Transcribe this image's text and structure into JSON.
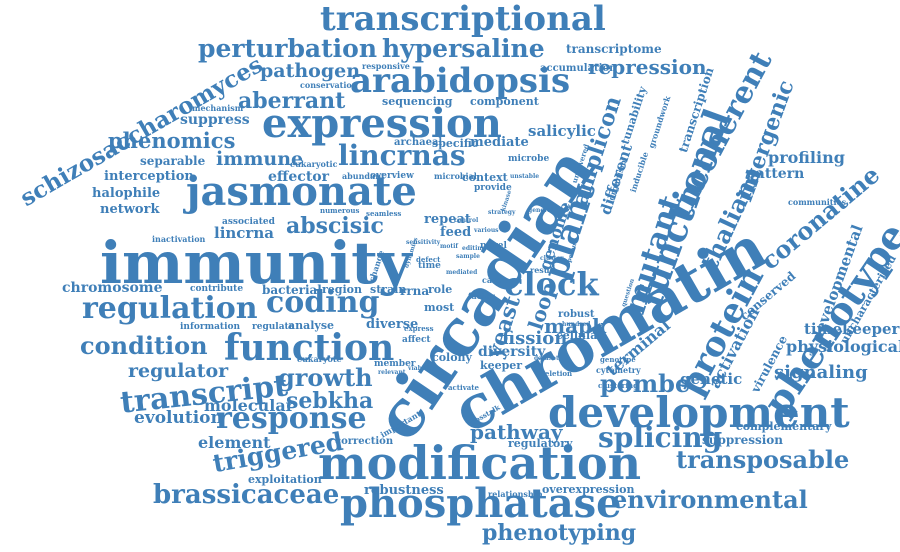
{
  "colors": {
    "word": "#3f7fb8",
    "background": "#ffffff"
  },
  "words": [
    "transcriptional",
    "perturbation",
    "hypersaline",
    "transcriptome",
    "repression",
    "pathogen",
    "responsive",
    "accumulation",
    "arabidopsis",
    "conservation",
    "aberrant",
    "sequencing",
    "component",
    "expression",
    "mechanism",
    "suppress",
    "salicylic",
    "phenomics",
    "lincrnas",
    "immune",
    "separable",
    "interception",
    "effector",
    "halophile",
    "network",
    "jasmonate",
    "associated",
    "inactivation",
    "lincrna",
    "abscisic",
    "immunity",
    "chromosome",
    "regulation",
    "coding",
    "condition",
    "function",
    "regulator",
    "transcript",
    "growth",
    "evolution",
    "molecular",
    "response",
    "sebkha",
    "element",
    "triggered",
    "brassicaceae",
    "phosphatase",
    "modification",
    "phenotyping",
    "robustness",
    "exploitation",
    "correction",
    "eukaryote",
    "information",
    "contribute",
    "bacterial",
    "region",
    "strain",
    "rrna",
    "regulate",
    "analyse",
    "diverse",
    "circadian",
    "chromatin",
    "development",
    "phenotype",
    "coronatine",
    "functional",
    "incoherent",
    "intergenic",
    "plant",
    "amplicon",
    "clock",
    "mutant",
    "thaliana",
    "genome",
    "different",
    "loop",
    "yeast",
    "mapk",
    "fission",
    "pombe",
    "protein",
    "terminal",
    "activation",
    "conserved",
    "developmental",
    "uncharacterized",
    "timekeeper",
    "physiological",
    "signaling",
    "genetic",
    "complementary",
    "suppression",
    "splicing",
    "transposable",
    "environmental",
    "pathway",
    "regulatory",
    "overexpression",
    "relationship",
    "profiling",
    "pattern",
    "schizosaccharomyces",
    "transcription",
    "tunability",
    "groundwork",
    "communities",
    "virulence",
    "cellular",
    "robust",
    "diversity",
    "keeper",
    "colony",
    "member",
    "cytometry",
    "clustering",
    "archaeal",
    "specific",
    "mediate",
    "microbe",
    "abundant",
    "overview",
    "microbial",
    "context",
    "provide",
    "repeat",
    "feed",
    "seamless",
    "numerous",
    "eukaryotic",
    "most",
    "role",
    "novel",
    "time",
    "defect",
    "result",
    "hundred",
    "genotype",
    "inducible",
    "organism",
    "uncovered",
    "deletion",
    "dataset",
    "important",
    "activate",
    "affect",
    "express",
    "viability",
    "relevant",
    "change",
    "question",
    "general",
    "various",
    "control",
    "sample",
    "editing",
    "case",
    "factor",
    "mediated",
    "sensitivity",
    "crosstalk",
    "unstable",
    "cluster",
    "operon",
    "kinase",
    "motif",
    "strategy",
    "dynamics"
  ]
}
